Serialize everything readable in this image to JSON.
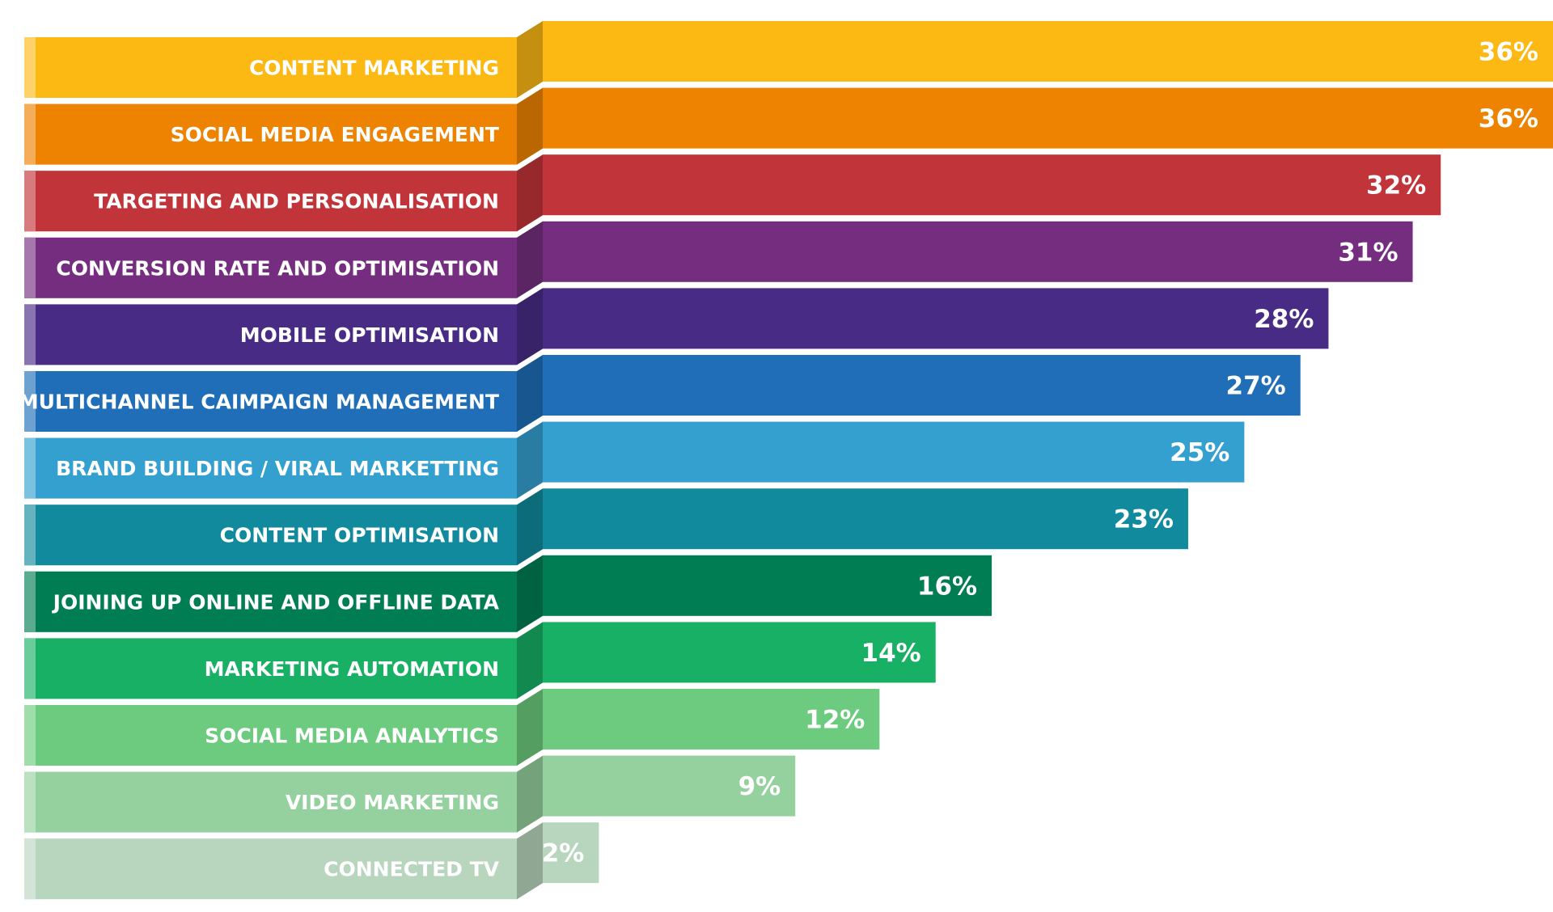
{
  "chart_data": {
    "type": "bar",
    "orientation": "horizontal",
    "value_suffix": "%",
    "xlim": [
      0,
      36
    ],
    "grid": false,
    "legend": "none",
    "categories": [
      "CONTENT MARKETING",
      "SOCIAL MEDIA ENGAGEMENT",
      "TARGETING AND PERSONALISATION",
      "CONVERSION RATE AND OPTIMISATION",
      "MOBILE  OPTIMISATION",
      "MULTICHANNEL CAIMPAIGN MANAGEMENT",
      "BRAND BUILDING / VIRAL MARKETTING",
      "CONTENT OPTIMISATION",
      "JOINING UP ONLINE AND OFFLINE DATA",
      "MARKETING AUTOMATION",
      "SOCIAL MEDIA ANALYTICS",
      "VIDEO MARKETING",
      "CONNECTED TV"
    ],
    "values": [
      36,
      36,
      32,
      31,
      28,
      27,
      25,
      23,
      16,
      14,
      12,
      9,
      2
    ],
    "value_labels": [
      "36%",
      "36%",
      "32%",
      "31%",
      "28%",
      "27%",
      "25%",
      "23%",
      "16%",
      "14%",
      "12%",
      "9%",
      "2%"
    ],
    "colors": [
      "#FDB913",
      "#EE8301",
      "#C1343A",
      "#752E7F",
      "#482B85",
      "#1F6EB7",
      "#34A0D0",
      "#108A9C",
      "#017D53",
      "#17B065",
      "#6CCB7E",
      "#95D19E",
      "#B8D6BE"
    ]
  }
}
